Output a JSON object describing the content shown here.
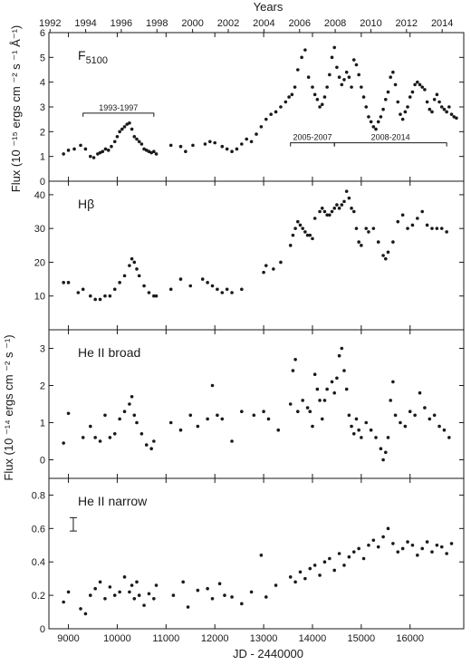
{
  "chart_data": {
    "type": "scatter",
    "x_bottom": {
      "label": "JD - 2440000",
      "range": [
        8600,
        17100
      ],
      "ticks": [
        9000,
        10000,
        11000,
        12000,
        13000,
        14000,
        15000,
        16000
      ]
    },
    "x_top": {
      "label": "Years",
      "ticks": [
        "1992",
        "1994",
        "1996",
        "1998",
        "2000",
        "2002",
        "2004",
        "2006",
        "2008",
        "2010",
        "2012",
        "2014"
      ],
      "tick_jd": [
        8623,
        9353,
        10083,
        10814,
        11544,
        12275,
        13005,
        13736,
        14466,
        15197,
        15927,
        16658
      ]
    },
    "y_label_top": "Flux (10 ⁻¹⁵ ergs cm ⁻² s ⁻¹ Å⁻¹)",
    "y_label_bottom": "Flux (10 ⁻¹⁴ ergs cm ⁻² s ⁻¹)",
    "panels": [
      {
        "name": "F5100",
        "label_main": "F",
        "label_sub": "5100",
        "ylim": [
          0,
          6
        ],
        "yticks": [
          0,
          1,
          2,
          3,
          4,
          5,
          6
        ],
        "brackets": [
          {
            "label": "1993-1997",
            "x": [
              9300,
              10750
            ],
            "y": 2.75
          },
          {
            "label": "2005-2007",
            "x": [
              13550,
              14450
            ],
            "y": 1.55
          },
          {
            "label": "2008-2014",
            "x": [
              14450,
              16750
            ],
            "y": 1.55
          }
        ],
        "x": [
          8900,
          9000,
          9120,
          9250,
          9350,
          9450,
          9520,
          9600,
          9650,
          9700,
          9760,
          9820,
          9880,
          9950,
          10000,
          10050,
          10100,
          10150,
          10200,
          10250,
          10300,
          10350,
          10400,
          10450,
          10500,
          10550,
          10600,
          10650,
          10700,
          10750,
          10800,
          11100,
          11300,
          11400,
          11550,
          11800,
          11900,
          12000,
          12150,
          12250,
          12350,
          12450,
          12550,
          12650,
          12750,
          12850,
          12950,
          13050,
          13150,
          13250,
          13350,
          13450,
          13520,
          13580,
          13640,
          13700,
          13780,
          13850,
          13920,
          14000,
          14050,
          14100,
          14150,
          14200,
          14250,
          14300,
          14350,
          14400,
          14450,
          14500,
          14550,
          14600,
          14650,
          14700,
          14750,
          14800,
          14850,
          14900,
          14950,
          15000,
          15050,
          15100,
          15150,
          15200,
          15250,
          15300,
          15350,
          15400,
          15450,
          15500,
          15550,
          15600,
          15650,
          15700,
          15750,
          15800,
          15850,
          15900,
          15950,
          16000,
          16050,
          16100,
          16150,
          16200,
          16250,
          16300,
          16350,
          16400,
          16450,
          16500,
          16550,
          16600,
          16650,
          16700,
          16750,
          16800,
          16850,
          16900,
          16950
        ],
        "y": [
          1.1,
          1.25,
          1.3,
          1.45,
          1.3,
          1.0,
          0.95,
          1.1,
          1.15,
          1.2,
          1.3,
          1.25,
          1.4,
          1.6,
          1.8,
          2.0,
          2.1,
          2.2,
          2.3,
          2.35,
          2.1,
          1.8,
          1.7,
          1.6,
          1.5,
          1.3,
          1.25,
          1.2,
          1.15,
          1.2,
          1.1,
          1.45,
          1.4,
          1.2,
          1.45,
          1.5,
          1.6,
          1.55,
          1.4,
          1.3,
          1.2,
          1.3,
          1.5,
          1.7,
          1.6,
          1.9,
          2.2,
          2.5,
          2.7,
          2.8,
          3.0,
          3.2,
          3.4,
          3.5,
          3.8,
          4.5,
          5.0,
          5.3,
          4.2,
          3.8,
          3.5,
          3.3,
          3.0,
          3.1,
          3.4,
          3.8,
          4.3,
          5.0,
          5.4,
          4.6,
          4.2,
          3.9,
          4.1,
          4.4,
          4.2,
          3.8,
          4.9,
          4.7,
          4.3,
          3.8,
          3.4,
          3.0,
          2.6,
          2.4,
          2.2,
          2.1,
          2.4,
          2.6,
          2.9,
          3.3,
          3.6,
          4.2,
          4.4,
          3.9,
          3.2,
          2.7,
          2.5,
          2.8,
          3.0,
          3.4,
          3.6,
          3.9,
          4.0,
          3.9,
          3.8,
          3.7,
          3.2,
          2.9,
          2.8,
          3.3,
          3.5,
          3.2,
          3.0,
          2.9,
          2.8,
          3.0,
          2.7,
          2.6,
          2.55
        ]
      },
      {
        "name": "Hβ",
        "label_main": "Hβ",
        "label_sub": "",
        "ylim": [
          0,
          44
        ],
        "yticks": [
          10,
          20,
          30,
          40
        ],
        "x": [
          8900,
          9000,
          9200,
          9300,
          9450,
          9550,
          9650,
          9750,
          9850,
          9950,
          10050,
          10150,
          10250,
          10300,
          10350,
          10400,
          10450,
          10550,
          10650,
          10750,
          10800,
          11100,
          11300,
          11500,
          11750,
          11850,
          11950,
          12050,
          12150,
          12250,
          12350,
          12550,
          13000,
          13050,
          13200,
          13350,
          13550,
          13600,
          13650,
          13700,
          13750,
          13800,
          13850,
          13900,
          13950,
          14000,
          14050,
          14150,
          14200,
          14250,
          14300,
          14350,
          14400,
          14450,
          14500,
          14550,
          14600,
          14650,
          14700,
          14750,
          14800,
          14850,
          14900,
          14950,
          15000,
          15100,
          15150,
          15250,
          15350,
          15450,
          15500,
          15550,
          15650,
          15750,
          15850,
          15950,
          16050,
          16150,
          16250,
          16350,
          16450,
          16550,
          16650,
          16750
        ],
        "y": [
          14,
          14,
          11,
          12,
          10,
          9,
          9,
          10,
          10,
          12,
          14,
          16,
          19,
          21,
          20,
          18,
          16,
          13,
          11,
          10,
          10,
          12,
          15,
          13,
          15,
          14,
          13,
          12,
          11,
          12,
          11,
          12,
          17,
          19,
          18,
          20,
          25,
          28,
          30,
          32,
          31,
          30,
          29,
          28,
          28,
          27,
          33,
          35,
          36,
          35,
          34,
          34,
          35,
          36,
          37,
          36,
          37,
          38,
          41,
          39,
          36,
          35,
          30,
          26,
          25,
          30,
          29,
          30,
          26,
          22,
          21,
          23,
          26,
          32,
          34,
          30,
          31,
          33,
          35,
          31,
          30,
          30,
          30,
          29
        ]
      },
      {
        "name": "He II broad",
        "label_main": "He II broad",
        "label_sub": "",
        "ylim": [
          -0.5,
          3.5
        ],
        "yticks": [
          0,
          1,
          2,
          3
        ],
        "x": [
          8900,
          9000,
          9300,
          9450,
          9550,
          9650,
          9750,
          9850,
          9950,
          10050,
          10150,
          10250,
          10300,
          10350,
          10400,
          10500,
          10600,
          10700,
          10750,
          11100,
          11300,
          11500,
          11650,
          11850,
          11950,
          12050,
          12150,
          12350,
          12550,
          12800,
          13000,
          13100,
          13300,
          13550,
          13600,
          13650,
          13700,
          13800,
          13900,
          13950,
          14000,
          14050,
          14100,
          14150,
          14200,
          14250,
          14300,
          14400,
          14450,
          14500,
          14550,
          14600,
          14650,
          14700,
          14750,
          14800,
          14850,
          14900,
          14950,
          15000,
          15100,
          15200,
          15300,
          15400,
          15450,
          15500,
          15550,
          15600,
          15650,
          15700,
          15800,
          15900,
          16000,
          16100,
          16200,
          16300,
          16400,
          16500,
          16600,
          16700,
          16800
        ],
        "y": [
          0.45,
          1.25,
          0.6,
          0.9,
          0.6,
          0.5,
          1.2,
          0.6,
          0.7,
          1.1,
          1.3,
          1.5,
          1.7,
          1.2,
          1.0,
          0.7,
          0.4,
          0.3,
          0.5,
          1.0,
          0.8,
          1.2,
          0.9,
          1.1,
          2.0,
          1.2,
          1.1,
          0.5,
          1.3,
          1.2,
          1.3,
          1.1,
          0.8,
          1.5,
          2.4,
          2.7,
          1.3,
          1.6,
          1.4,
          1.3,
          0.9,
          2.3,
          1.9,
          1.6,
          1.1,
          1.6,
          1.9,
          2.1,
          1.8,
          2.2,
          2.8,
          3.0,
          2.4,
          1.9,
          1.2,
          0.9,
          0.7,
          1.1,
          0.8,
          0.6,
          1.0,
          0.8,
          0.6,
          0.3,
          0.0,
          0.2,
          0.6,
          1.6,
          2.1,
          1.2,
          1.0,
          0.9,
          1.3,
          1.2,
          1.8,
          1.4,
          1.1,
          1.2,
          0.9,
          0.8,
          0.6
        ]
      },
      {
        "name": "He II narrow",
        "label_main": "He II narrow",
        "label_sub": "",
        "ylim": [
          0,
          0.9
        ],
        "yticks": [
          0,
          0.2,
          0.4,
          0.6,
          0.8
        ],
        "error_bar_example": {
          "x": 9100,
          "y": 0.625,
          "err": 0.04
        },
        "x": [
          8900,
          9000,
          9250,
          9350,
          9450,
          9550,
          9650,
          9750,
          9850,
          9950,
          10050,
          10150,
          10250,
          10300,
          10350,
          10400,
          10450,
          10550,
          10650,
          10750,
          10800,
          11150,
          11350,
          11450,
          11650,
          11850,
          11950,
          12100,
          12200,
          12350,
          12550,
          12750,
          12950,
          13050,
          13250,
          13550,
          13650,
          13750,
          13850,
          13950,
          14050,
          14150,
          14250,
          14350,
          14450,
          14550,
          14650,
          14750,
          14850,
          14950,
          15050,
          15150,
          15250,
          15350,
          15450,
          15550,
          15650,
          15750,
          15850,
          15950,
          16050,
          16150,
          16250,
          16350,
          16450,
          16550,
          16650,
          16750,
          16850
        ],
        "y": [
          0.16,
          0.22,
          0.12,
          0.09,
          0.2,
          0.24,
          0.28,
          0.18,
          0.25,
          0.2,
          0.22,
          0.31,
          0.22,
          0.26,
          0.18,
          0.28,
          0.2,
          0.14,
          0.21,
          0.18,
          0.26,
          0.2,
          0.28,
          0.13,
          0.23,
          0.24,
          0.18,
          0.27,
          0.2,
          0.19,
          0.15,
          0.22,
          0.44,
          0.19,
          0.26,
          0.31,
          0.28,
          0.34,
          0.3,
          0.36,
          0.38,
          0.32,
          0.4,
          0.42,
          0.35,
          0.45,
          0.38,
          0.43,
          0.46,
          0.48,
          0.42,
          0.5,
          0.53,
          0.49,
          0.55,
          0.6,
          0.51,
          0.46,
          0.48,
          0.52,
          0.5,
          0.44,
          0.48,
          0.52,
          0.46,
          0.5,
          0.49,
          0.45,
          0.51
        ]
      }
    ]
  }
}
